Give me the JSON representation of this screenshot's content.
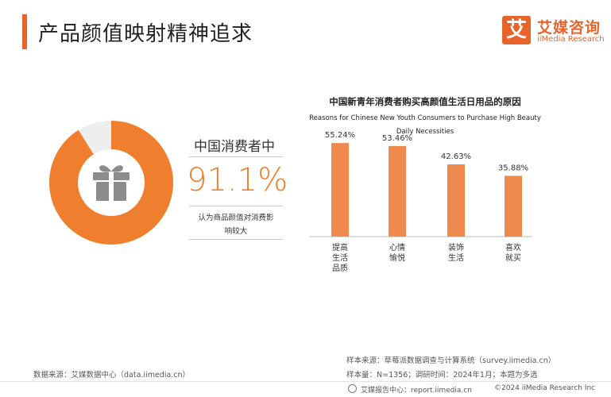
{
  "header": {
    "title": "产品颜值映射精神追求",
    "logo_mark": "艾",
    "logo_cn": "艾媒咨询",
    "logo_en": "iiMedia Research"
  },
  "stat": {
    "label": "中国消费者中",
    "value": "91.1%",
    "percent": 91.1,
    "desc_line1": "认为商品颜值对消费影",
    "desc_line2": "响较大",
    "icon": "gift-icon"
  },
  "chart_data": {
    "type": "bar",
    "title": "中国新青年消费者购买高颜值生活日用品的原因",
    "subtitle_en_line1": "Reasons for Chinese New Youth Consumers to Purchase High Beauty",
    "subtitle_en_line2": "Daily Necessities",
    "categories": [
      "提高生活品质",
      "心情愉悦",
      "装饰生活",
      "喜欢就买"
    ],
    "category_lines": [
      [
        "提高",
        "生活",
        "品质"
      ],
      [
        "心情",
        "愉悦"
      ],
      [
        "装饰",
        "生活"
      ],
      [
        "喜欢",
        "就买"
      ]
    ],
    "values": [
      55.24,
      53.46,
      42.63,
      35.88
    ],
    "value_labels": [
      "55.24%",
      "53.46%",
      "42.63%",
      "35.88%"
    ],
    "ylim": [
      0,
      60
    ],
    "xlabel": "",
    "ylabel": "",
    "grid": false
  },
  "footer": {
    "source_left": "数据来源：艾媒数据中心（data.iimedia.cn）",
    "source_right_1": "样本来源：草莓派数据调查与计算系统（survey.iimedia.cn）",
    "source_right_2": "样本量：N=1356；调研时间：2024年1月；本题为多选",
    "report_site": "艾媒报告中心：report.iimedia.cn",
    "copyright": "©2024 iiMedia Research Inc"
  },
  "colors": {
    "accent": "#e8632a",
    "donut": "#ef7f2e",
    "donut_rest": "#eeeeee",
    "bar": "#f0894e",
    "icon": "#8c8c8c"
  }
}
